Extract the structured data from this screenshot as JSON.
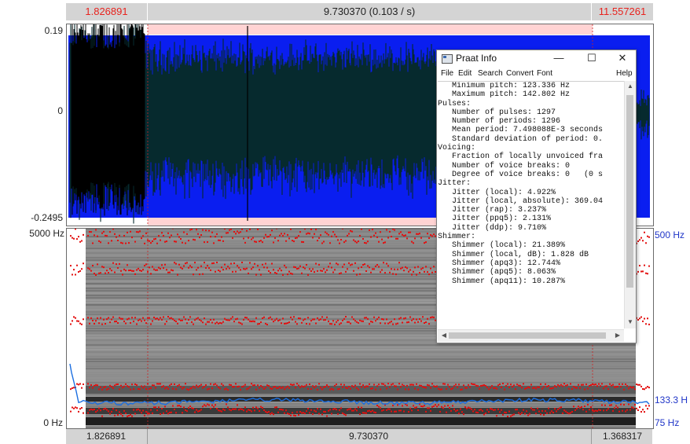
{
  "top_bar": {
    "left_time": "1.826891",
    "middle": "9.730370 (0.103 / s)",
    "right_time": "11.557261"
  },
  "waveform_axis": {
    "max": "0.19",
    "zero": "0",
    "min": "-0.2495"
  },
  "spectrogram_axis": {
    "top_left": "5000 Hz",
    "bottom_left": "0 Hz",
    "top_right": "500 Hz",
    "pitch_value": "133.3 H",
    "bottom_right": "75 Hz"
  },
  "bottom_bar": {
    "left": "1.826891",
    "middle": "9.730370",
    "right": "1.368317"
  },
  "colors": {
    "waveform_background": "#0a1ef0",
    "selection": "#ffd3d3",
    "formant": "#e30f0f",
    "pitch": "#1b6ee0",
    "axis_red": "#e8231e",
    "axis_blue": "#1f35c8"
  },
  "info_window": {
    "title": "Praat Info",
    "minimize_icon": "minimize-icon",
    "maximize_icon": "maximize-icon",
    "close_icon": "close-icon",
    "menu": [
      "File",
      "Edit",
      "Search",
      "Convert",
      "Font",
      "Help"
    ],
    "lines": [
      "   Minimum pitch: 123.336 Hz",
      "   Maximum pitch: 142.802 Hz",
      "Pulses:",
      "   Number of pulses: 1297",
      "   Number of periods: 1296",
      "   Mean period: 7.498088E-3 seconds",
      "   Standard deviation of period: 0.",
      "Voicing:",
      "   Fraction of locally unvoiced fra",
      "   Number of voice breaks: 0",
      "   Degree of voice breaks: 0   (0 s",
      "Jitter:",
      "   Jitter (local): 4.922%",
      "   Jitter (local, absolute): 369.04",
      "   Jitter (rap): 3.237%",
      "   Jitter (ppq5): 2.131%",
      "   Jitter (ddp): 9.710%",
      "Shimmer:",
      "   Shimmer (local): 21.389%",
      "   Shimmer (local, dB): 1.828 dB",
      "   Shimmer (apq3): 12.744%",
      "   Shimmer (apq5): 8.063%",
      "   Shimmer (apq11): 10.287%"
    ]
  }
}
